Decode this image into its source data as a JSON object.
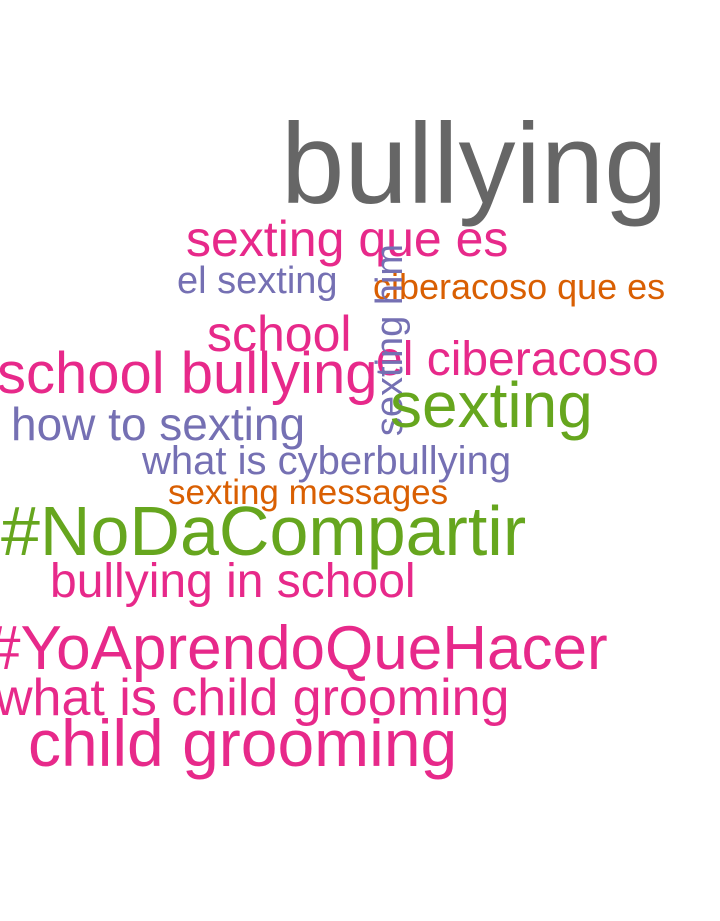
{
  "colors": {
    "gray": "#666666",
    "pink": "#e7298a",
    "purple": "#7570b3",
    "orange": "#d95f02",
    "green": "#66a61e"
  },
  "words": {
    "bullying": "bullying",
    "sexting_que_es": "sexting que es",
    "el_sexting": "el sexting",
    "sexting_him": "sexting him",
    "ciberacoso_que_es": "ciberacoso que es",
    "school": "school",
    "school_bullying": "school bullying",
    "el_ciberacoso": "el ciberacoso",
    "sexting": "sexting",
    "how_to_sexting": "how to sexting",
    "what_is_cyberbullying": "what is cyberbullying",
    "sexting_messages": "sexting messages",
    "nodacompartir": "#NoDaCompartir",
    "bullying_in_school": "bullying in school",
    "yoaprendoquehacer": "#YoAprendoQueHacer",
    "what_is_child_grooming": "what is child grooming",
    "child_grooming": "child grooming"
  }
}
